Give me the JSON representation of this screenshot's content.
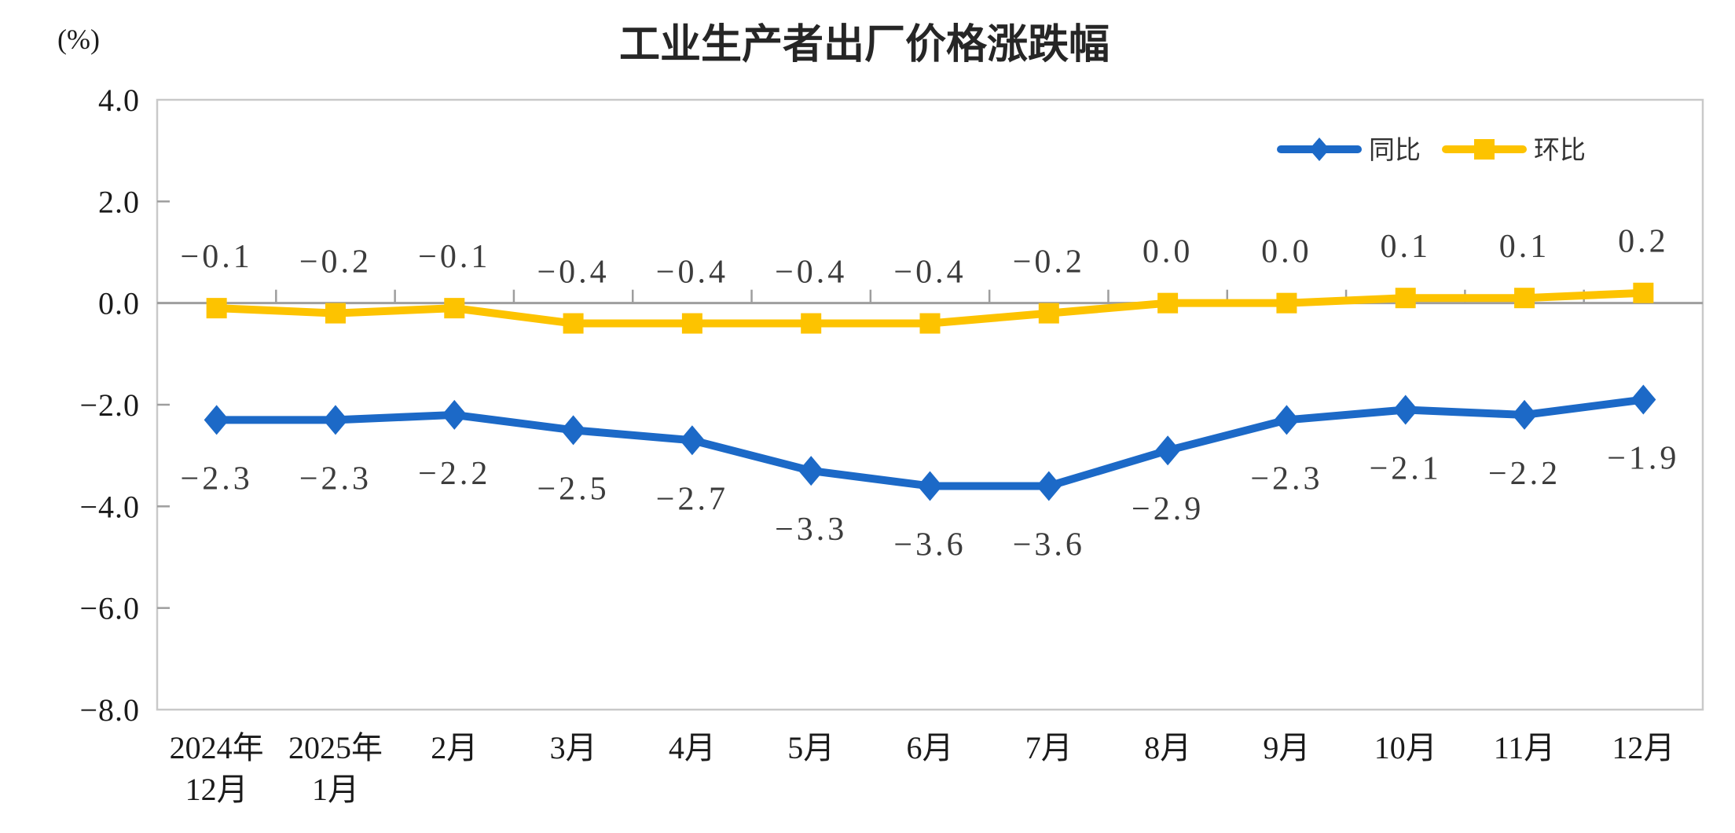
{
  "chart_data": {
    "type": "line",
    "title": "工业生产者出厂价格涨跌幅",
    "xlabel": "",
    "ylabel": "(%)",
    "categories": [
      "2024年\n12月",
      "2025年\n1月",
      "2月",
      "3月",
      "4月",
      "5月",
      "6月",
      "7月",
      "8月",
      "9月",
      "10月",
      "11月",
      "12月"
    ],
    "series": [
      {
        "name": "同比",
        "color": "#1c69c7",
        "marker": "diamond",
        "label_position": "below",
        "values": [
          -2.3,
          -2.3,
          -2.2,
          -2.5,
          -2.7,
          -3.3,
          -3.6,
          -3.6,
          -2.9,
          -2.3,
          -2.1,
          -2.2,
          -1.9
        ]
      },
      {
        "name": "环比",
        "color": "#fdc300",
        "marker": "square",
        "label_position": "above",
        "values": [
          -0.1,
          -0.2,
          -0.1,
          -0.4,
          -0.4,
          -0.4,
          -0.4,
          -0.2,
          0.0,
          0.0,
          0.1,
          0.1,
          0.2
        ]
      }
    ],
    "ylim": [
      -8.0,
      4.0
    ],
    "ytick_step": 2.0,
    "ytick_labels": [
      "4.0",
      "2.0",
      "0.0",
      "-2.0",
      "-4.0",
      "-6.0",
      "-8.0"
    ],
    "grid": false,
    "data_labels": true,
    "legend_position": "top-right-inside",
    "colors": {
      "frame": "#c9c9c9",
      "zero_line": "#9e9e9e",
      "tick": "#9e9e9e",
      "background": "#ffffff"
    }
  }
}
